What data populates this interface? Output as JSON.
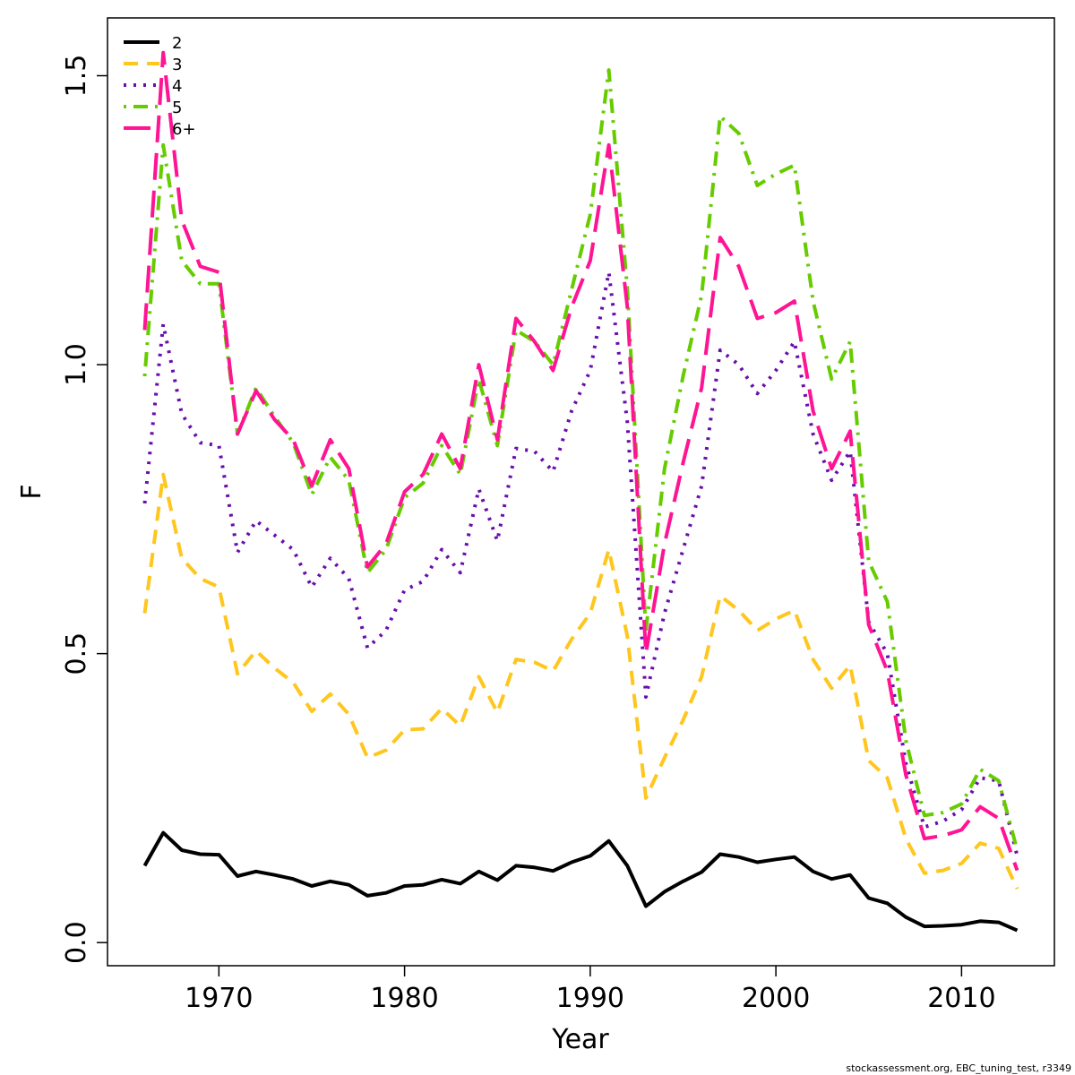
{
  "chart_data": {
    "type": "line",
    "xlabel": "Year",
    "ylabel": "F",
    "xlim": [
      1964,
      2015
    ],
    "ylim": [
      -0.04,
      1.6
    ],
    "x_ticks": [
      "1970",
      "1980",
      "1990",
      "2000",
      "2010"
    ],
    "y_ticks": [
      "0.0",
      "0.5",
      "1.0",
      "1.5"
    ],
    "grid": false,
    "legend_position": "top-left",
    "footer": "stockassessment.org, EBC_tuning_test, r3349",
    "x": [
      1966,
      1967,
      1968,
      1969,
      1970,
      1971,
      1972,
      1973,
      1974,
      1975,
      1976,
      1977,
      1978,
      1979,
      1980,
      1981,
      1982,
      1983,
      1984,
      1985,
      1986,
      1987,
      1988,
      1989,
      1990,
      1991,
      1992,
      1993,
      1994,
      1995,
      1996,
      1997,
      1998,
      1999,
      2000,
      2001,
      2002,
      2003,
      2004,
      2005,
      2006,
      2007,
      2008,
      2009,
      2010,
      2011,
      2012,
      2013
    ],
    "series": [
      {
        "name": "2",
        "color": "#000000",
        "dash": "solid",
        "values": [
          0.133,
          0.19,
          0.16,
          0.153,
          0.152,
          0.115,
          0.123,
          0.117,
          0.11,
          0.098,
          0.106,
          0.1,
          0.081,
          0.086,
          0.098,
          0.1,
          0.109,
          0.102,
          0.123,
          0.108,
          0.133,
          0.13,
          0.124,
          0.139,
          0.15,
          0.176,
          0.133,
          0.063,
          0.088,
          0.106,
          0.122,
          0.153,
          0.148,
          0.139,
          0.144,
          0.148,
          0.123,
          0.11,
          0.117,
          0.077,
          0.068,
          0.044,
          0.028,
          0.029,
          0.031,
          0.037,
          0.035,
          0.021
        ]
      },
      {
        "name": "3",
        "color": "#FFC61E",
        "dash": "dashed",
        "values": [
          0.57,
          0.81,
          0.665,
          0.63,
          0.615,
          0.465,
          0.505,
          0.475,
          0.45,
          0.4,
          0.43,
          0.395,
          0.32,
          0.333,
          0.368,
          0.37,
          0.405,
          0.375,
          0.46,
          0.398,
          0.49,
          0.485,
          0.47,
          0.525,
          0.57,
          0.68,
          0.53,
          0.25,
          0.32,
          0.385,
          0.46,
          0.6,
          0.575,
          0.54,
          0.56,
          0.575,
          0.49,
          0.44,
          0.48,
          0.315,
          0.285,
          0.18,
          0.12,
          0.125,
          0.137,
          0.172,
          0.163,
          0.093
        ]
      },
      {
        "name": "4",
        "color": "#6A0DAD",
        "dash": "dotted",
        "values": [
          0.76,
          1.07,
          0.915,
          0.865,
          0.86,
          0.675,
          0.73,
          0.705,
          0.68,
          0.615,
          0.665,
          0.63,
          0.51,
          0.54,
          0.61,
          0.625,
          0.68,
          0.64,
          0.785,
          0.695,
          0.855,
          0.85,
          0.815,
          0.92,
          0.99,
          1.16,
          0.9,
          0.425,
          0.57,
          0.68,
          0.79,
          1.025,
          1.0,
          0.95,
          0.99,
          1.04,
          0.88,
          0.8,
          0.85,
          0.555,
          0.5,
          0.31,
          0.2,
          0.21,
          0.23,
          0.285,
          0.28,
          0.15
        ]
      },
      {
        "name": "5",
        "color": "#66CC00",
        "dash": "dotdash",
        "values": [
          0.98,
          1.38,
          1.18,
          1.14,
          1.14,
          0.88,
          0.96,
          0.91,
          0.865,
          0.775,
          0.84,
          0.8,
          0.64,
          0.68,
          0.77,
          0.795,
          0.86,
          0.81,
          0.975,
          0.86,
          1.06,
          1.04,
          1.0,
          1.13,
          1.26,
          1.51,
          1.13,
          0.54,
          0.82,
          0.98,
          1.12,
          1.43,
          1.4,
          1.31,
          1.33,
          1.345,
          1.11,
          0.975,
          1.04,
          0.66,
          0.59,
          0.35,
          0.22,
          0.225,
          0.24,
          0.3,
          0.28,
          0.16
        ]
      },
      {
        "name": "6+",
        "color": "#FF1493",
        "dash": "longdash",
        "values": [
          1.06,
          1.54,
          1.25,
          1.17,
          1.16,
          0.88,
          0.955,
          0.905,
          0.87,
          0.79,
          0.87,
          0.82,
          0.65,
          0.69,
          0.78,
          0.81,
          0.88,
          0.82,
          1.0,
          0.87,
          1.08,
          1.04,
          0.99,
          1.1,
          1.18,
          1.38,
          1.1,
          0.5,
          0.69,
          0.83,
          0.96,
          1.22,
          1.17,
          1.08,
          1.09,
          1.11,
          0.92,
          0.82,
          0.885,
          0.55,
          0.47,
          0.29,
          0.18,
          0.185,
          0.195,
          0.235,
          0.215,
          0.125
        ]
      }
    ]
  }
}
